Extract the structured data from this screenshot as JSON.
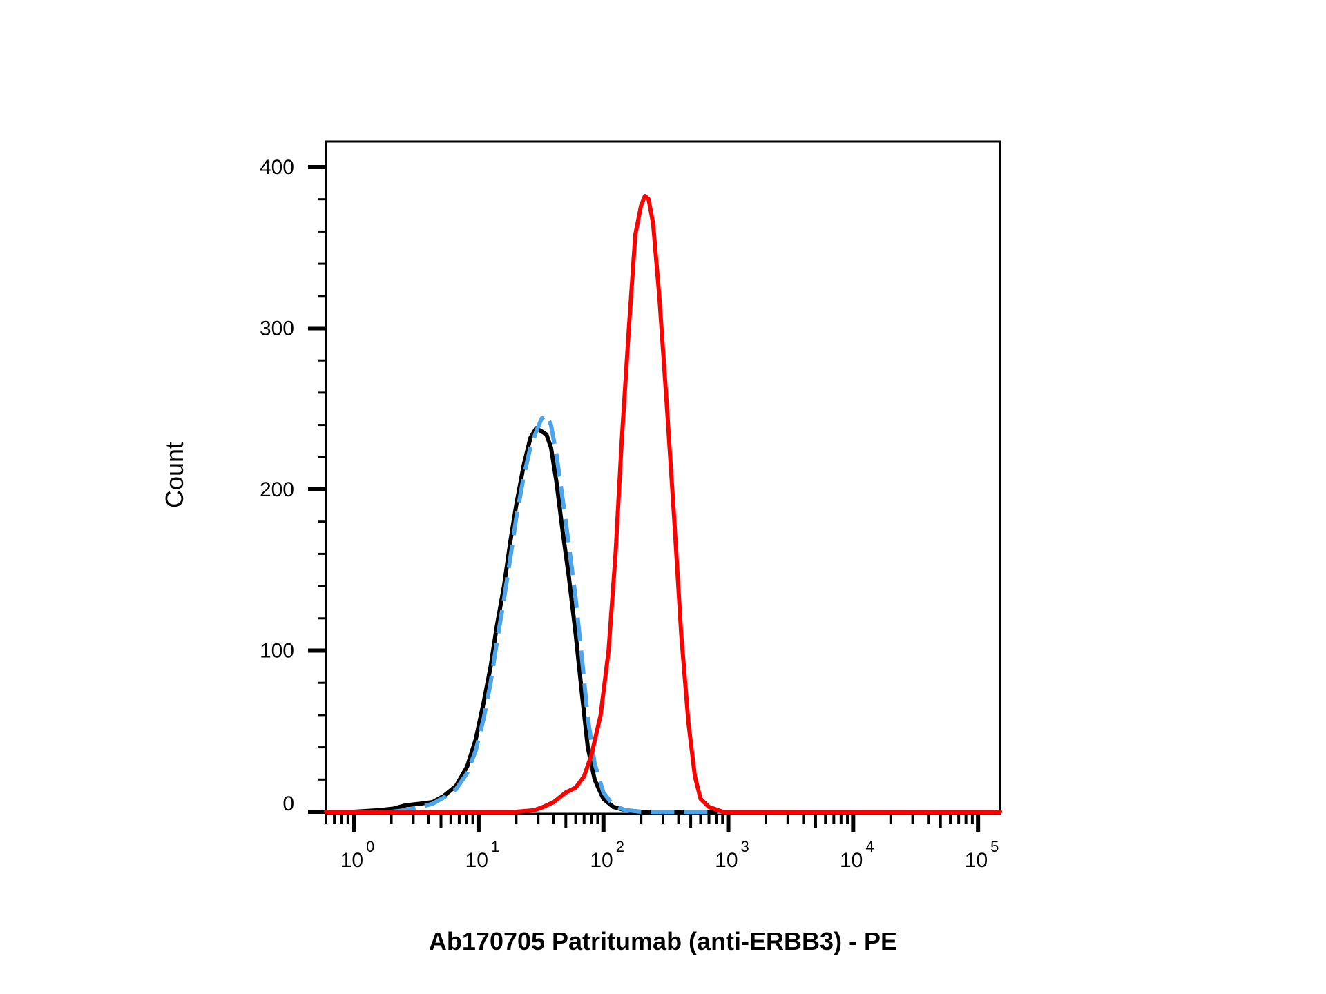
{
  "chart_data": {
    "type": "line",
    "title": "",
    "xlabel": "Ab170705 Patritumab (anti-ERBB3) - PE",
    "ylabel": "Count",
    "x_scale": "log",
    "xlim": [
      0.6,
      150000
    ],
    "ylim": [
      0,
      420
    ],
    "y_ticks": [
      {
        "value": 0,
        "label": "0"
      },
      {
        "value": 100,
        "label": "100"
      },
      {
        "value": 200,
        "label": "200"
      },
      {
        "value": 300,
        "label": "300"
      },
      {
        "value": 400,
        "label": "400"
      }
    ],
    "x_ticks": [
      {
        "value": 1,
        "base": "10",
        "exp": "0"
      },
      {
        "value": 10,
        "base": "10",
        "exp": "1"
      },
      {
        "value": 100,
        "base": "10",
        "exp": "2"
      },
      {
        "value": 1000,
        "base": "10",
        "exp": "3"
      },
      {
        "value": 10000,
        "base": "10",
        "exp": "4"
      },
      {
        "value": 100000,
        "base": "10",
        "exp": "5"
      }
    ],
    "grid": false,
    "legend": "none",
    "series": [
      {
        "color": "#000000",
        "style": "solid",
        "points": [
          [
            0.6,
            0
          ],
          [
            1.0,
            0
          ],
          [
            1.6,
            1
          ],
          [
            2.1,
            2
          ],
          [
            2.6,
            4
          ],
          [
            3.4,
            5
          ],
          [
            4.3,
            6
          ],
          [
            5.3,
            10
          ],
          [
            6.6,
            16
          ],
          [
            8.1,
            28
          ],
          [
            9.5,
            45
          ],
          [
            11,
            68
          ],
          [
            12.5,
            90
          ],
          [
            14,
            115
          ],
          [
            16,
            140
          ],
          [
            18,
            168
          ],
          [
            20,
            190
          ],
          [
            23,
            215
          ],
          [
            26,
            232
          ],
          [
            29,
            238
          ],
          [
            32,
            236
          ],
          [
            35,
            234
          ],
          [
            38,
            226
          ],
          [
            42,
            205
          ],
          [
            47,
            175
          ],
          [
            53,
            145
          ],
          [
            60,
            110
          ],
          [
            68,
            70
          ],
          [
            75,
            40
          ],
          [
            85,
            20
          ],
          [
            100,
            8
          ],
          [
            120,
            3
          ],
          [
            150,
            1
          ],
          [
            200,
            0
          ],
          [
            500,
            0
          ],
          [
            150000,
            0
          ]
        ]
      },
      {
        "color": "#4ea4ea",
        "style": "dashed",
        "points": [
          [
            0.6,
            0
          ],
          [
            2.0,
            0
          ],
          [
            2.6,
            1
          ],
          [
            3.4,
            3
          ],
          [
            4.3,
            5
          ],
          [
            5.3,
            9
          ],
          [
            6.6,
            14
          ],
          [
            8.1,
            24
          ],
          [
            9.5,
            38
          ],
          [
            11,
            58
          ],
          [
            12.5,
            80
          ],
          [
            14,
            105
          ],
          [
            16,
            132
          ],
          [
            18,
            158
          ],
          [
            20,
            182
          ],
          [
            23,
            208
          ],
          [
            26,
            226
          ],
          [
            29,
            236
          ],
          [
            32,
            244
          ],
          [
            35,
            246
          ],
          [
            38,
            240
          ],
          [
            42,
            222
          ],
          [
            47,
            195
          ],
          [
            53,
            165
          ],
          [
            60,
            132
          ],
          [
            68,
            92
          ],
          [
            75,
            58
          ],
          [
            85,
            30
          ],
          [
            100,
            12
          ],
          [
            120,
            4
          ],
          [
            150,
            1
          ],
          [
            200,
            0
          ],
          [
            500,
            0
          ],
          [
            150000,
            0
          ]
        ]
      },
      {
        "color": "#ff0000",
        "style": "solid",
        "points": [
          [
            0.6,
            0
          ],
          [
            20,
            0
          ],
          [
            28,
            1
          ],
          [
            33,
            3
          ],
          [
            40,
            6
          ],
          [
            50,
            12
          ],
          [
            60,
            15
          ],
          [
            70,
            22
          ],
          [
            80,
            35
          ],
          [
            95,
            60
          ],
          [
            110,
            100
          ],
          [
            125,
            160
          ],
          [
            140,
            230
          ],
          [
            160,
            300
          ],
          [
            180,
            358
          ],
          [
            200,
            376
          ],
          [
            215,
            382
          ],
          [
            230,
            380
          ],
          [
            250,
            365
          ],
          [
            280,
            320
          ],
          [
            320,
            255
          ],
          [
            370,
            180
          ],
          [
            420,
            110
          ],
          [
            480,
            55
          ],
          [
            540,
            22
          ],
          [
            600,
            8
          ],
          [
            700,
            3
          ],
          [
            900,
            0
          ],
          [
            2000,
            0
          ],
          [
            150000,
            0
          ]
        ]
      }
    ]
  }
}
